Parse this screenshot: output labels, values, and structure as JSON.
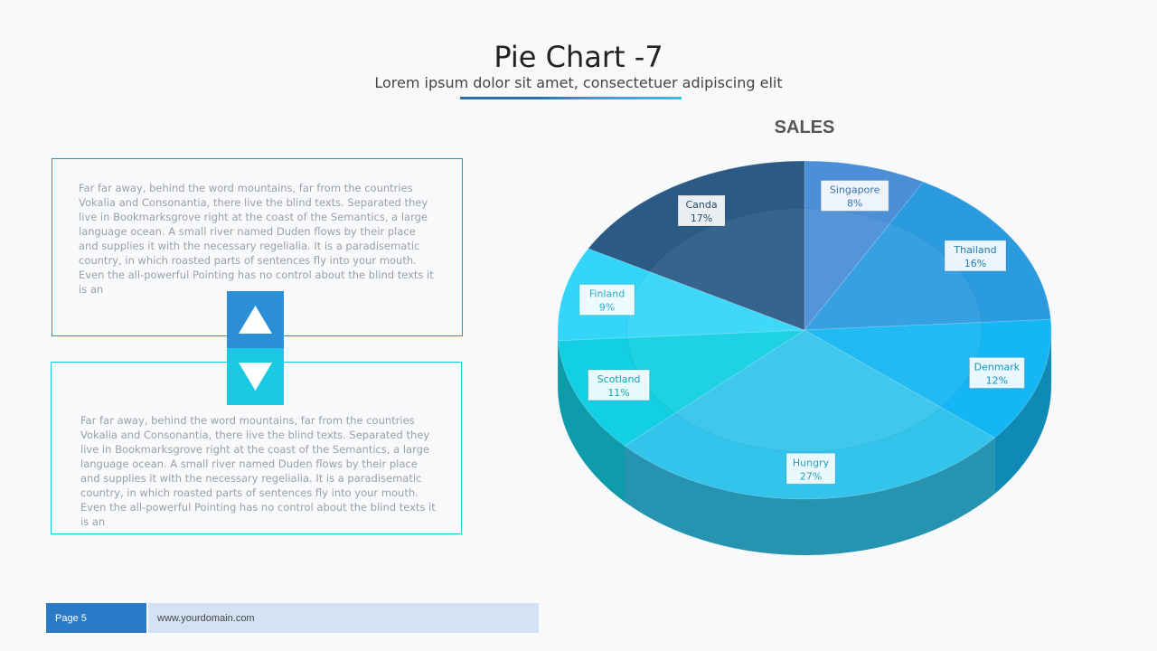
{
  "slide": {
    "title": "Pie Chart -7",
    "subtitle": "Lorem ipsum dolor sit amet, consectetuer adipiscing elit"
  },
  "text_blocks": [
    "Far far away, behind the word mountains, far from the countries Vokalia and Consonantia, there live the blind texts. Separated they live in Bookmarksgrove right at the coast of the Semantics, a large language ocean. A small river named Duden flows by their place and supplies it with the necessary regelialia. It is a paradisematic country, in which roasted parts of sentences fly into your mouth. Even the all-powerful Pointing has no control about the blind texts it is an",
    "Far far away, behind the word mountains, far from the countries Vokalia and Consonantia, there live the blind texts. Separated they live in Bookmarksgrove right at the coast of the Semantics, a large language ocean. A small river named Duden flows by their place and supplies it with the necessary regelialia. It is a paradisematic country, in which roasted parts of sentences fly into your mouth. Even the all-powerful Pointing has no control about the blind texts it is an"
  ],
  "buttons": {
    "up_icon": "triangle-up-icon",
    "down_icon": "triangle-down-icon"
  },
  "chart_data": {
    "type": "pie",
    "title": "SALES",
    "style": "3d",
    "categories": [
      "Singapore",
      "Thailand",
      "Denmark",
      "Hungry",
      "Scotland",
      "Finland",
      "Canda"
    ],
    "values": [
      8,
      16,
      12,
      27,
      11,
      9,
      17
    ],
    "value_labels": [
      "8%",
      "16%",
      "12%",
      "27%",
      "11%",
      "9%",
      "17%"
    ],
    "colors": [
      "#4a8fd8",
      "#2b9be0",
      "#14b6f3",
      "#33c4ec",
      "#12cfe3",
      "#33d6f9",
      "#2b5b85"
    ],
    "legend": "none"
  },
  "footer": {
    "page": "Page 5",
    "url": "www.yourdomain.com"
  }
}
